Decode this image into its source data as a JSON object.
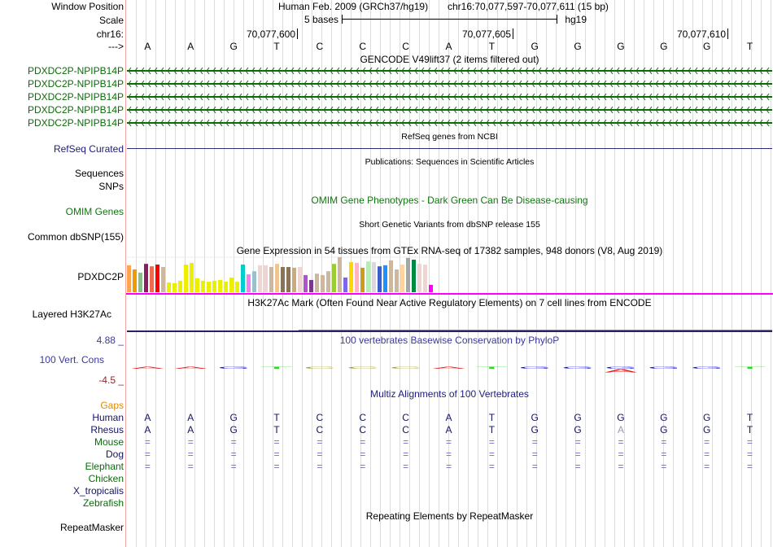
{
  "browser": {
    "assembly": "Human Feb. 2009 (GRCh37/hg19)",
    "position": "chr16:70,077,597-70,077,611 (15 bp)",
    "chrom": "chr16",
    "start": 70077597,
    "end": 70077611,
    "scale": {
      "label": "5 bases",
      "bases": 5,
      "db": "hg19"
    },
    "ticks": [
      {
        "label": "70,077,600",
        "coord": 70077600
      },
      {
        "label": "70,077,605",
        "coord": 70077605
      },
      {
        "label": "70,077,610",
        "coord": 70077610
      }
    ],
    "sequence": [
      "A",
      "A",
      "G",
      "T",
      "C",
      "C",
      "C",
      "A",
      "T",
      "G",
      "G",
      "G",
      "G",
      "G",
      "T"
    ]
  },
  "left_labels": {
    "window_position": "Window Position",
    "scale": "Scale",
    "chrom": "chr16:",
    "strand": "--->"
  },
  "colors": {
    "gene_green": "#0b6b0b",
    "navy": "#1c1c78",
    "gridline": "#d9d9f5",
    "separator": "#f4a6a6",
    "magenta": "#ff00ff"
  },
  "tracks": {
    "gencode": {
      "title": "GENCODE V49lift37 (2 items filtered out)",
      "items": [
        {
          "name": "PDXDC2P-NPIPB14P",
          "strand": "-"
        },
        {
          "name": "PDXDC2P-NPIPB14P",
          "strand": "-"
        },
        {
          "name": "PDXDC2P-NPIPB14P",
          "strand": "-"
        },
        {
          "name": "PDXDC2P-NPIPB14P",
          "strand": "-"
        },
        {
          "name": "PDXDC2P-NPIPB14P",
          "strand": "-"
        }
      ]
    },
    "refseq": {
      "title": "RefSeq genes from NCBI",
      "label": "RefSeq Curated"
    },
    "publications": {
      "title": "Publications: Sequences in Scientific Articles",
      "labels": [
        "Sequences",
        "SNPs"
      ]
    },
    "omim": {
      "title": "OMIM Gene Phenotypes - Dark Green Can Be Disease-causing",
      "label": "OMIM Genes"
    },
    "dbsnp": {
      "title": "Short Genetic Variants from dbSNP release 155",
      "label": "Common dbSNP(155)"
    },
    "gtex": {
      "title": "Gene Expression in 54 tissues from GTEx RNA-seq of 17382 samples, 948 donors (V8, Aug 2019)",
      "label": "PDXDC2P",
      "tissue_colors": [
        "#FFA54F",
        "#EE9A00",
        "#8FBC8F",
        "#8B1C62",
        "#EE6A50",
        "#FF0000",
        "#CDB79E",
        "#EEEE00",
        "#EEEE00",
        "#EEEE00",
        "#EEEE00",
        "#EEEE00",
        "#EEEE00",
        "#EEEE00",
        "#EEEE00",
        "#EEEE00",
        "#EEEE00",
        "#EEEE00",
        "#EEEE00",
        "#EEEE00",
        "#00CDCD",
        "#EE82EE",
        "#9AC0CD",
        "#EED5D2",
        "#EED5D2",
        "#CDB79E",
        "#EEC591",
        "#8B7355",
        "#8B7355",
        "#CDAA7D",
        "#EED5D2",
        "#B452CD",
        "#7A378B",
        "#CDB79E",
        "#CDB79E",
        "#CDB79E",
        "#9ACD32",
        "#CDB79E",
        "#7A67EE",
        "#FFD700",
        "#FFB6C1",
        "#CD9B1D",
        "#B4EEB4",
        "#D9D9D9",
        "#3A5FCD",
        "#1E90FF",
        "#CDB79E",
        "#CDB79E",
        "#FFD39B",
        "#A6A6A6",
        "#008B45",
        "#EED5D2",
        "#EED5D2",
        "#FF00FF"
      ],
      "relative_expression": [
        0.77,
        0.65,
        0.56,
        0.81,
        0.74,
        0.79,
        0.72,
        0.28,
        0.26,
        0.33,
        0.79,
        0.84,
        0.4,
        0.33,
        0.3,
        0.33,
        0.35,
        0.3,
        0.42,
        0.3,
        0.79,
        0.51,
        0.6,
        0.77,
        0.77,
        0.72,
        0.81,
        0.72,
        0.72,
        0.7,
        0.72,
        0.49,
        0.35,
        0.53,
        0.49,
        0.6,
        0.81,
        1.0,
        0.42,
        0.86,
        0.84,
        0.7,
        0.88,
        0.86,
        0.74,
        0.77,
        0.91,
        0.65,
        0.79,
        0.98,
        0.93,
        0.81,
        0.79,
        0.21
      ]
    },
    "h3k27ac": {
      "title": "H3K27Ac Mark (Often Found Near Active Regulatory Elements) on 7 cell lines from ENCODE",
      "label": "Layered H3K27Ac"
    },
    "phylop": {
      "title": "100 vertebrates Basewise Conservation by PhyloP",
      "label": "100 Vert. Cons",
      "max_label": "4.88 _",
      "min_label": "-4.5 _",
      "base_colors": {
        "A": "#e01010",
        "C": "#a8a028",
        "G": "#1010e0",
        "T": "#22dd22"
      },
      "negative_glyphs": [
        {
          "index": 11,
          "base": "A"
        }
      ]
    },
    "multiz": {
      "title": "Multiz Alignments of 100 Vertebrates",
      "gaps_label": "Gaps",
      "species": [
        {
          "name": "Human",
          "color": "#141464",
          "bases": "AAGTCCCATGGGGGT",
          "mismatches": []
        },
        {
          "name": "Rhesus",
          "color": "#141464",
          "bases": "AAGTCCCATGGAGGT",
          "mismatches": [
            11
          ]
        },
        {
          "name": "Mouse",
          "color": "#0b6b0b",
          "bases": "===============",
          "mismatches": []
        },
        {
          "name": "Dog",
          "color": "#141464",
          "bases": "===============",
          "mismatches": []
        },
        {
          "name": "Elephant",
          "color": "#0b6b0b",
          "bases": "===============",
          "mismatches": []
        },
        {
          "name": "Chicken",
          "color": "#0b6b0b",
          "bases": "",
          "mismatches": []
        },
        {
          "name": "X_tropicalis",
          "color": "#141464",
          "bases": "",
          "mismatches": []
        },
        {
          "name": "Zebrafish",
          "color": "#0b6b0b",
          "bases": "",
          "mismatches": []
        }
      ]
    },
    "repeatmasker": {
      "title": "Repeating Elements by RepeatMasker",
      "label": "RepeatMasker"
    }
  }
}
